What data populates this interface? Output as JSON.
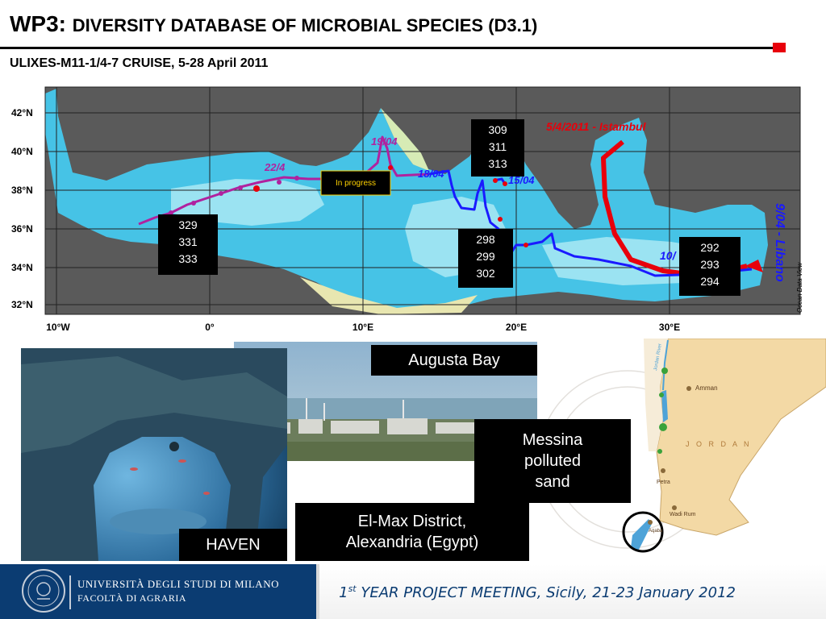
{
  "title": {
    "prefix": "WP3:",
    "main": "DIVERSITY DATABASE OF MICROBIAL SPECIES (D3.1)"
  },
  "subtitle": "ULIXES-M11-1/4-7 CRUISE, 5-28 April 2011",
  "map": {
    "lat_labels": [
      "42°N",
      "40°N",
      "38°N",
      "36°N",
      "34°N",
      "32°N"
    ],
    "lon_labels": [
      "10°W",
      "0°",
      "10°E",
      "20°E",
      "30°E"
    ],
    "credit": "Ocean Data View",
    "route_labels": {
      "start": "5/4/2011 - Istambul",
      "libano": "9/04 - Libano",
      "d10": "10/",
      "d15": "15/04",
      "d18": "18/04",
      "d19": "19/04",
      "d22": "22/4"
    },
    "in_progress": "In progress",
    "station_boxes": [
      [
        "309",
        "311",
        "313"
      ],
      [
        "329",
        "331",
        "333"
      ],
      [
        "298",
        "299",
        "302"
      ],
      [
        "292",
        "293",
        "294"
      ]
    ]
  },
  "captions": {
    "augusta": "Augusta Bay",
    "messina": [
      "Messina",
      "polluted",
      "sand"
    ],
    "elmax": [
      "El-Max District,",
      "Alexandria (Egypt)"
    ],
    "haven": "HAVEN"
  },
  "jordan_map": {
    "country": "J O R D A N",
    "places": [
      "Amman",
      "Petra",
      "Wadi Rum",
      "Aqaba"
    ],
    "river": "Jordan River"
  },
  "footer": {
    "university": "UNIVERSITÀ DEGLI STUDI DI MILANO",
    "faculty": "FACOLTÀ DI AGRARIA",
    "meeting_ordinal": "1",
    "meeting_suffix": "st",
    "meeting_rest": " YEAR PROJECT MEETING, Sicily, 21-23 January 2012"
  },
  "colors": {
    "accent_red": "#e8000b",
    "footer_blue": "#0b3c72",
    "route_red": "#e8000b",
    "route_blue": "#1a1aff",
    "route_purple": "#b0229f"
  }
}
